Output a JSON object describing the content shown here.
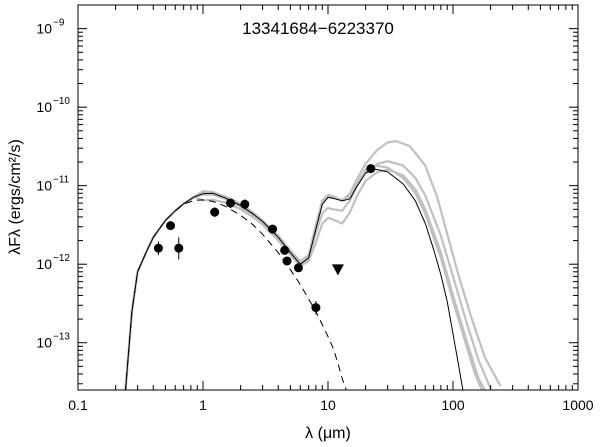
{
  "chart_data": {
    "type": "scatter",
    "title": "13341684−6223370",
    "xlabel": "λ (μm)",
    "ylabel": "λFλ (ergs/cm²/s)",
    "x_scale": "log",
    "y_scale": "log",
    "xlim": [
      0.1,
      1000
    ],
    "ylim": [
      2.5e-14,
      2e-09
    ],
    "x_ticks": [
      {
        "value": 0.1,
        "label": "0.1"
      },
      {
        "value": 1,
        "label": "1"
      },
      {
        "value": 10,
        "label": "10"
      },
      {
        "value": 100,
        "label": "100"
      },
      {
        "value": 1000,
        "label": "1000"
      }
    ],
    "y_ticks": [
      {
        "value": 1e-13,
        "base": "10",
        "exp": "−13"
      },
      {
        "value": 1e-12,
        "base": "10",
        "exp": "−12"
      },
      {
        "value": 1e-11,
        "base": "10",
        "exp": "−11"
      },
      {
        "value": 1e-10,
        "base": "10",
        "exp": "−10"
      },
      {
        "value": 1e-09,
        "base": "10",
        "exp": "−9"
      }
    ],
    "observed": {
      "points": [
        {
          "x": 0.44,
          "y": 1.6e-12,
          "err_lo": 1.3e-12,
          "err_hi": 1.95e-12
        },
        {
          "x": 0.55,
          "y": 3.1e-12,
          "err_lo": 2.8e-12,
          "err_hi": 3.4e-12
        },
        {
          "x": 0.64,
          "y": 1.6e-12,
          "err_lo": 1.15e-12,
          "err_hi": 2.2e-12
        },
        {
          "x": 1.24,
          "y": 4.6e-12,
          "err_lo": 4e-12,
          "err_hi": 5.3e-12
        },
        {
          "x": 1.66,
          "y": 6e-12,
          "err_lo": 5.2e-12,
          "err_hi": 6.9e-12
        },
        {
          "x": 2.16,
          "y": 5.8e-12,
          "err_lo": 5e-12,
          "err_hi": 6.7e-12
        },
        {
          "x": 3.6,
          "y": 2.8e-12,
          "err_lo": 2.5e-12,
          "err_hi": 3.1e-12
        },
        {
          "x": 4.5,
          "y": 1.5e-12,
          "err_lo": 1.35e-12,
          "err_hi": 1.65e-12
        },
        {
          "x": 4.7,
          "y": 1.1e-12,
          "err_lo": 1e-12,
          "err_hi": 1.2e-12
        },
        {
          "x": 5.8,
          "y": 9e-13,
          "err_lo": 8e-13,
          "err_hi": 1e-12
        },
        {
          "x": 8.0,
          "y": 2.8e-13,
          "err_lo": 2.3e-13,
          "err_hi": 3.4e-13
        },
        {
          "x": 22.0,
          "y": 1.65e-11,
          "err_lo": 1.55e-11,
          "err_hi": 1.75e-11
        }
      ],
      "upper_limits": [
        {
          "x": 12.0,
          "y": 8.6e-13
        }
      ]
    },
    "best_fit_model": {
      "color": "#000000",
      "points": [
        [
          0.24,
          2.5e-14
        ],
        [
          0.27,
          2.5e-13
        ],
        [
          0.3,
          8e-13
        ],
        [
          0.35,
          1.4e-12
        ],
        [
          0.4,
          2.2e-12
        ],
        [
          0.5,
          3.6e-12
        ],
        [
          0.6,
          4.8e-12
        ],
        [
          0.7,
          5.9e-12
        ],
        [
          0.85,
          7.2e-12
        ],
        [
          1.0,
          7.9e-12
        ],
        [
          1.2,
          8e-12
        ],
        [
          1.5,
          7e-12
        ],
        [
          2.0,
          5.6e-12
        ],
        [
          2.5,
          4.4e-12
        ],
        [
          3.0,
          3.5e-12
        ],
        [
          4.0,
          2.2e-12
        ],
        [
          5.0,
          1.4e-12
        ],
        [
          6.0,
          1e-12
        ],
        [
          7.0,
          1.2e-12
        ],
        [
          8.0,
          2.8e-12
        ],
        [
          9.0,
          5.8e-12
        ],
        [
          10.0,
          7.1e-12
        ],
        [
          11.0,
          6.9e-12
        ],
        [
          13.0,
          6.4e-12
        ],
        [
          15.0,
          6.8e-12
        ],
        [
          17.0,
          9.7e-12
        ],
        [
          20.0,
          1.45e-11
        ],
        [
          24.0,
          1.62e-11
        ],
        [
          30.0,
          1.5e-11
        ],
        [
          40.0,
          1.05e-11
        ],
        [
          50.0,
          6.4e-12
        ],
        [
          60.0,
          3.3e-12
        ],
        [
          70.0,
          1.55e-12
        ],
        [
          80.0,
          7.3e-13
        ],
        [
          90.0,
          3.3e-13
        ],
        [
          100.0,
          1.3e-13
        ],
        [
          110.0,
          5.5e-14
        ],
        [
          120.0,
          2.5e-14
        ]
      ]
    },
    "alternate_models": [
      {
        "color": "#c0c0c0",
        "points": [
          [
            0.24,
            2.5e-14
          ],
          [
            0.27,
            2.5e-13
          ],
          [
            0.3,
            8e-13
          ],
          [
            0.35,
            1.4e-12
          ],
          [
            0.4,
            2.2e-12
          ],
          [
            0.5,
            3.6e-12
          ],
          [
            0.6,
            4.8e-12
          ],
          [
            0.7,
            5.9e-12
          ],
          [
            0.85,
            7.2e-12
          ],
          [
            1.0,
            8.5e-12
          ],
          [
            1.2,
            8.3e-12
          ],
          [
            1.5,
            7.3e-12
          ],
          [
            2.0,
            5.9e-12
          ],
          [
            2.5,
            4.6e-12
          ],
          [
            3.0,
            3.6e-12
          ],
          [
            4.0,
            2.3e-12
          ],
          [
            5.0,
            1.5e-12
          ],
          [
            6.0,
            1.1e-12
          ],
          [
            7.0,
            1.3e-12
          ],
          [
            8.0,
            3.2e-12
          ],
          [
            9.0,
            6.5e-12
          ],
          [
            10.0,
            7.6e-12
          ],
          [
            11.0,
            7.3e-12
          ],
          [
            13.0,
            6.5e-12
          ],
          [
            15.0,
            8e-12
          ],
          [
            17.0,
            1.2e-11
          ],
          [
            20.0,
            1.9e-11
          ],
          [
            25.0,
            2.9e-11
          ],
          [
            30.0,
            3.55e-11
          ],
          [
            35.0,
            3.7e-11
          ],
          [
            45.0,
            3.2e-11
          ],
          [
            60.0,
            1.8e-11
          ],
          [
            75.0,
            7e-12
          ],
          [
            90.0,
            2.4e-12
          ],
          [
            110.0,
            7.5e-13
          ],
          [
            140.0,
            2.1e-13
          ],
          [
            180.0,
            6.5e-14
          ],
          [
            240.0,
            2.8e-14
          ]
        ]
      },
      {
        "color": "#c0c0c0",
        "points": [
          [
            0.24,
            2.5e-14
          ],
          [
            0.27,
            2.5e-13
          ],
          [
            0.3,
            8e-13
          ],
          [
            0.35,
            1.4e-12
          ],
          [
            0.4,
            2.2e-12
          ],
          [
            0.5,
            3.6e-12
          ],
          [
            0.6,
            4.8e-12
          ],
          [
            0.7,
            5.9e-12
          ],
          [
            0.85,
            7.2e-12
          ],
          [
            1.0,
            7.7e-12
          ],
          [
            1.2,
            7.7e-12
          ],
          [
            1.5,
            6.8e-12
          ],
          [
            2.0,
            5.4e-12
          ],
          [
            2.5,
            4.2e-12
          ],
          [
            3.0,
            3.3e-12
          ],
          [
            4.0,
            2.1e-12
          ],
          [
            5.0,
            1.35e-12
          ],
          [
            6.0,
            1e-12
          ],
          [
            7.0,
            1.2e-12
          ],
          [
            8.0,
            2.5e-12
          ],
          [
            9.0,
            4.5e-12
          ],
          [
            10.0,
            5.2e-12
          ],
          [
            11.0,
            5e-12
          ],
          [
            13.0,
            4.8e-12
          ],
          [
            15.0,
            6.5e-12
          ],
          [
            17.0,
            1e-11
          ],
          [
            20.0,
            1.5e-11
          ],
          [
            25.0,
            1.9e-11
          ],
          [
            30.0,
            2.05e-11
          ],
          [
            40.0,
            1.8e-11
          ],
          [
            50.0,
            1.25e-11
          ],
          [
            60.0,
            7.5e-12
          ],
          [
            80.0,
            2.3e-12
          ],
          [
            100.0,
            7e-13
          ],
          [
            130.0,
            1.7e-13
          ],
          [
            160.0,
            6e-14
          ],
          [
            200.0,
            2.6e-14
          ]
        ]
      },
      {
        "color": "#c0c0c0",
        "points": [
          [
            0.24,
            2.5e-14
          ],
          [
            0.27,
            2.5e-13
          ],
          [
            0.3,
            8e-13
          ],
          [
            0.35,
            1.4e-12
          ],
          [
            0.4,
            2.2e-12
          ],
          [
            0.5,
            3.6e-12
          ],
          [
            0.6,
            4.8e-12
          ],
          [
            0.7,
            5.9e-12
          ],
          [
            0.85,
            7.2e-12
          ],
          [
            1.0,
            6.5e-12
          ],
          [
            1.2,
            6.6e-12
          ],
          [
            1.5,
            6.1e-12
          ],
          [
            2.0,
            5e-12
          ],
          [
            2.5,
            4e-12
          ],
          [
            3.0,
            3.2e-12
          ],
          [
            4.0,
            2e-12
          ],
          [
            5.0,
            1.3e-12
          ],
          [
            6.0,
            9.5e-13
          ],
          [
            7.0,
            1.1e-12
          ],
          [
            8.0,
            1.9e-12
          ],
          [
            9.0,
            3.3e-12
          ],
          [
            10.0,
            3.9e-12
          ],
          [
            11.0,
            3.7e-12
          ],
          [
            13.0,
            3.3e-12
          ],
          [
            15.0,
            4.6e-12
          ],
          [
            17.0,
            7.3e-12
          ],
          [
            20.0,
            1.15e-11
          ],
          [
            25.0,
            1.5e-11
          ],
          [
            30.0,
            1.6e-11
          ],
          [
            40.0,
            1.35e-11
          ],
          [
            50.0,
            9e-12
          ],
          [
            60.0,
            5e-12
          ],
          [
            80.0,
            1.4e-12
          ],
          [
            100.0,
            4e-13
          ],
          [
            130.0,
            1e-13
          ],
          [
            160.0,
            3.5e-14
          ],
          [
            180.0,
            2.5e-14
          ]
        ]
      },
      {
        "color": "#c0c0c0",
        "points": [
          [
            0.24,
            2.5e-14
          ],
          [
            0.27,
            2.5e-13
          ],
          [
            0.3,
            8e-13
          ],
          [
            0.35,
            1.4e-12
          ],
          [
            0.4,
            2.2e-12
          ],
          [
            0.5,
            3.6e-12
          ],
          [
            0.6,
            4.8e-12
          ],
          [
            0.7,
            5.9e-12
          ],
          [
            0.85,
            7.2e-12
          ],
          [
            1.0,
            8.2e-12
          ],
          [
            1.2,
            8.1e-12
          ],
          [
            1.5,
            7.2e-12
          ],
          [
            2.0,
            5.8e-12
          ],
          [
            2.5,
            4.5e-12
          ],
          [
            3.0,
            3.6e-12
          ],
          [
            4.0,
            2.3e-12
          ],
          [
            5.0,
            1.45e-12
          ],
          [
            6.0,
            1.05e-12
          ],
          [
            7.0,
            1.25e-12
          ],
          [
            8.0,
            3e-12
          ],
          [
            9.0,
            6e-12
          ],
          [
            10.0,
            7.2e-12
          ],
          [
            11.0,
            7e-12
          ],
          [
            13.0,
            6.6e-12
          ],
          [
            15.0,
            7.3e-12
          ],
          [
            17.0,
            1.05e-11
          ],
          [
            20.0,
            1.6e-11
          ],
          [
            24.0,
            1.8e-11
          ],
          [
            30.0,
            1.7e-11
          ],
          [
            40.0,
            1.25e-11
          ],
          [
            50.0,
            8e-12
          ],
          [
            60.0,
            4.4e-12
          ],
          [
            80.0,
            1.2e-12
          ],
          [
            100.0,
            3.4e-13
          ],
          [
            130.0,
            8.5e-14
          ],
          [
            150.0,
            4e-14
          ],
          [
            170.0,
            2.5e-14
          ]
        ]
      }
    ],
    "stellar_photosphere": {
      "color": "#000000",
      "style": "dashed",
      "points": [
        [
          0.24,
          2.5e-14
        ],
        [
          0.27,
          2.5e-13
        ],
        [
          0.3,
          8e-13
        ],
        [
          0.35,
          1.4e-12
        ],
        [
          0.4,
          2.2e-12
        ],
        [
          0.5,
          3.6e-12
        ],
        [
          0.6,
          4.8e-12
        ],
        [
          0.7,
          5.8e-12
        ],
        [
          0.85,
          6.5e-12
        ],
        [
          1.0,
          6.6e-12
        ],
        [
          1.2,
          6.3e-12
        ],
        [
          1.5,
          5.5e-12
        ],
        [
          2.0,
          4.2e-12
        ],
        [
          2.5,
          3.2e-12
        ],
        [
          3.0,
          2.4e-12
        ],
        [
          4.0,
          1.4e-12
        ],
        [
          5.0,
          8.5e-13
        ],
        [
          6.0,
          5.5e-13
        ],
        [
          7.0,
          3.6e-13
        ],
        [
          8.0,
          2.5e-13
        ],
        [
          9.0,
          1.7e-13
        ],
        [
          10.0,
          1.2e-13
        ],
        [
          11.0,
          8.5e-14
        ],
        [
          12.0,
          5.5e-14
        ],
        [
          13.0,
          3.5e-14
        ],
        [
          14.0,
          2.5e-14
        ]
      ]
    }
  }
}
